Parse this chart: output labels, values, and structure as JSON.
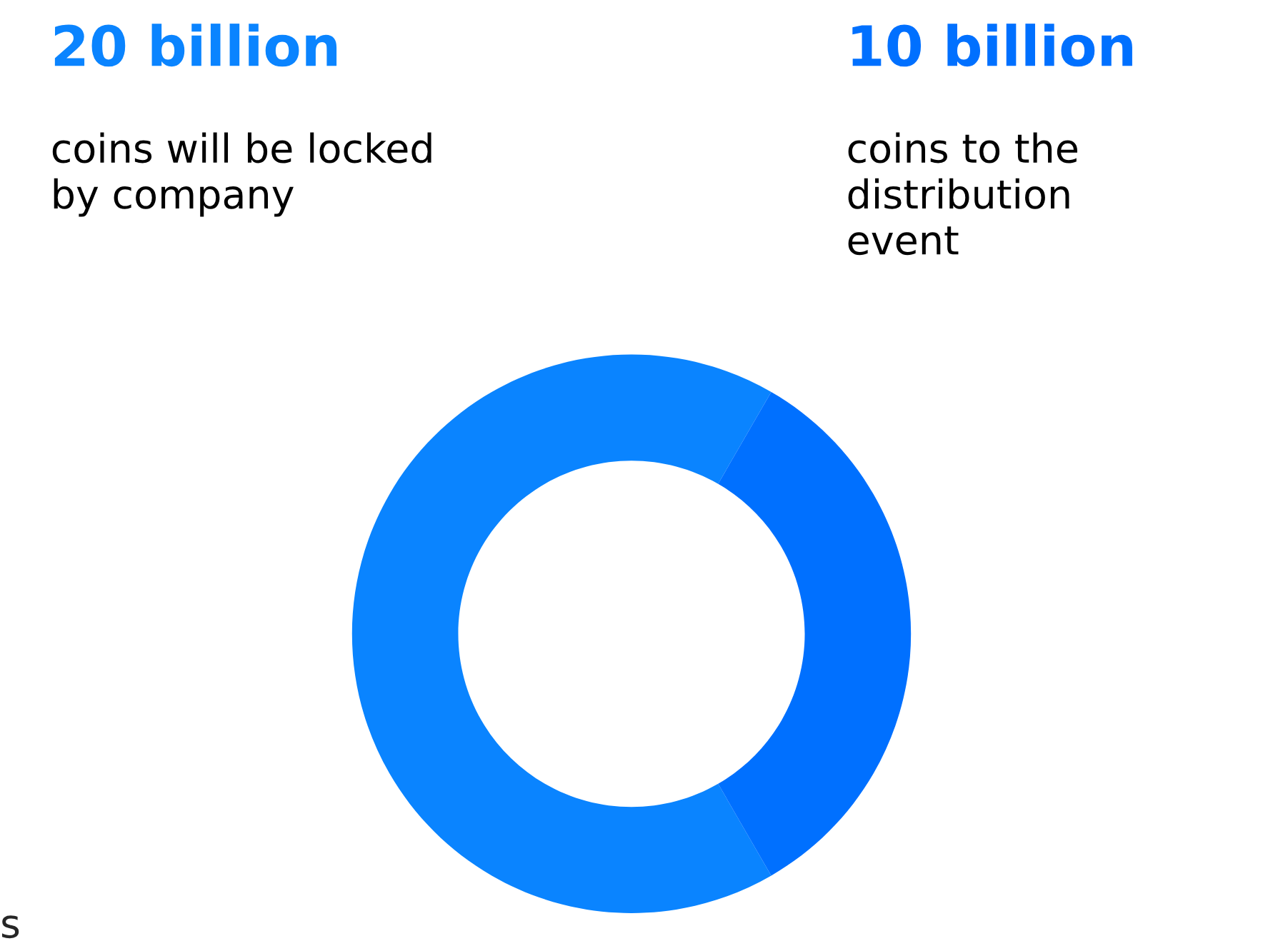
{
  "chart_data": {
    "type": "donut",
    "categories": [
      "coins will be locked\nby company",
      "coins to the\ndistribution\nevent"
    ],
    "values": [
      20,
      10
    ],
    "value_labels": [
      "20 billion",
      "10 billion"
    ],
    "colors": [
      "#0a84ff",
      "#0070ff"
    ],
    "annotations": [
      "s"
    ]
  }
}
